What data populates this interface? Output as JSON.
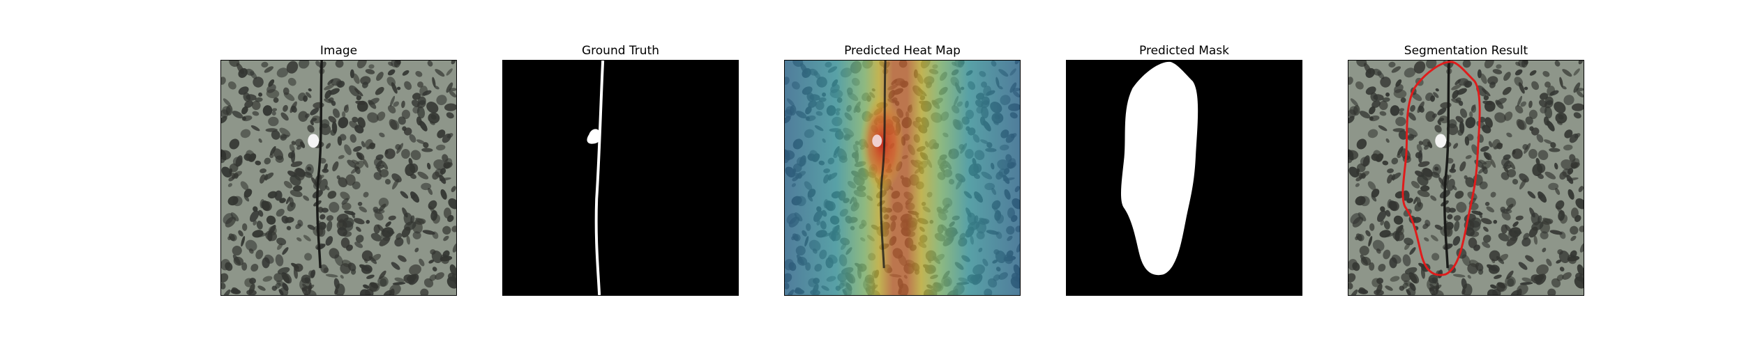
{
  "figure": {
    "panels": [
      {
        "title": "Image"
      },
      {
        "title": "Ground Truth"
      },
      {
        "title": "Predicted Heat Map"
      },
      {
        "title": "Predicted Mask"
      },
      {
        "title": "Segmentation Result"
      }
    ]
  },
  "colors": {
    "texture_background": "#8e968a",
    "texture_blotch": "#333531",
    "mask_background": "#000000",
    "mask_foreground": "#ffffff",
    "contour": "#e01b1b",
    "heat_cool": "#2f7fb0",
    "heat_mid": "#3fc0b8",
    "heat_warm": "#e2c631",
    "heat_hot": "#c8281e"
  }
}
